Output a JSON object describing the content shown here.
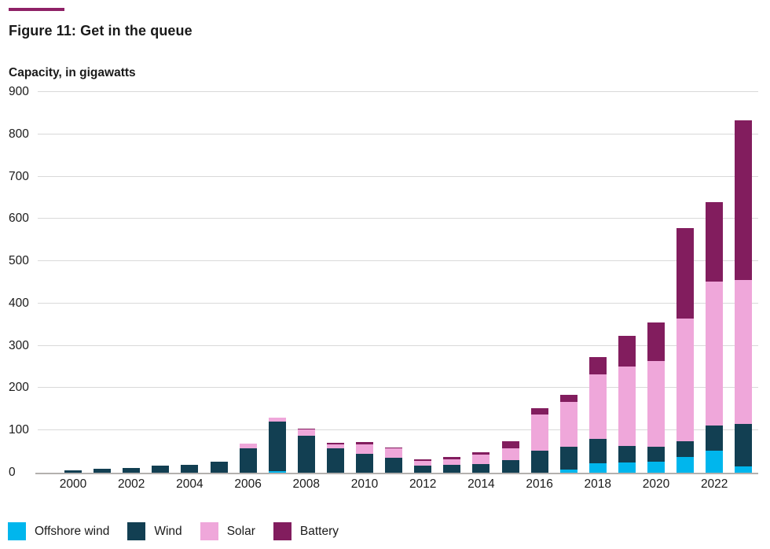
{
  "title": "Figure 11: Get in the queue",
  "subtitle": "Capacity, in gigawatts",
  "accent_color": "#8e2166",
  "text_color": "#1a1a1a",
  "gridline_color": "#d9d9d9",
  "axis_color": "#b3b0ae",
  "chart_data": {
    "type": "bar",
    "stacked": true,
    "title": "Figure 11: Get in the queue",
    "ylabel": "Capacity, in gigawatts",
    "xlabel": "",
    "ylim": [
      0,
      900
    ],
    "yticks": [
      0,
      100,
      200,
      300,
      400,
      500,
      600,
      700,
      800,
      900
    ],
    "grid": true,
    "legend_position": "bottom",
    "categories": [
      2000,
      2001,
      2002,
      2003,
      2004,
      2005,
      2006,
      2007,
      2008,
      2009,
      2010,
      2011,
      2012,
      2013,
      2014,
      2015,
      2016,
      2017,
      2018,
      2019,
      2020,
      2021,
      2022,
      2023
    ],
    "xtick_labels": [
      "2000",
      "2002",
      "2004",
      "2006",
      "2008",
      "2010",
      "2012",
      "2014",
      "2016",
      "2018",
      "2020",
      "2022"
    ],
    "series": [
      {
        "name": "Offshore wind",
        "color": "#00b6ed",
        "values": [
          0,
          0,
          0,
          0,
          0,
          0,
          0,
          3,
          0,
          0,
          0,
          0,
          0,
          0,
          0,
          0,
          0,
          8,
          23,
          25,
          26,
          37,
          52,
          15
        ]
      },
      {
        "name": "Wind",
        "color": "#123f52",
        "values": [
          5,
          10,
          11,
          16,
          19,
          26,
          57,
          117,
          88,
          57,
          44,
          36,
          17,
          19,
          20,
          30,
          52,
          54,
          57,
          38,
          35,
          38,
          59,
          100
        ]
      },
      {
        "name": "Solar",
        "color": "#efa7da",
        "values": [
          0,
          0,
          0,
          0,
          0,
          0,
          11,
          11,
          14,
          10,
          23,
          21,
          11,
          13,
          22,
          27,
          85,
          105,
          152,
          188,
          204,
          290,
          341,
          341
        ]
      },
      {
        "name": "Battery",
        "color": "#821d5e",
        "values": [
          0,
          0,
          0,
          0,
          0,
          0,
          0,
          0,
          3,
          4,
          5,
          3,
          4,
          6,
          6,
          18,
          15,
          17,
          42,
          72,
          90,
          214,
          187,
          378
        ]
      }
    ]
  },
  "legend": {
    "items": [
      "Offshore wind",
      "Wind",
      "Solar",
      "Battery"
    ]
  }
}
